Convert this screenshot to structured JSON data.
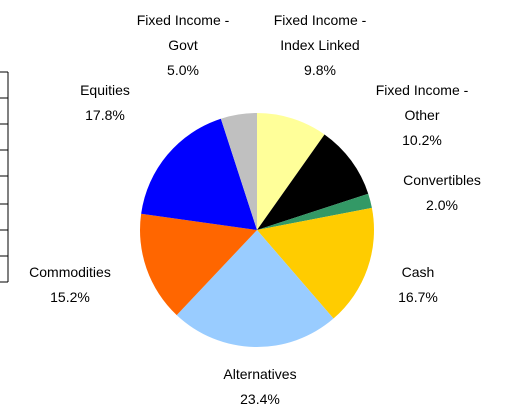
{
  "chart_data": {
    "type": "pie",
    "categories": [
      "Fixed Income - Index Linked",
      "Fixed Income - Other",
      "Convertibles",
      "Cash",
      "Alternatives",
      "Commodities",
      "Equities",
      "Fixed Income - Govt"
    ],
    "values": [
      9.8,
      10.2,
      2.0,
      16.7,
      23.4,
      15.2,
      17.8,
      5.0
    ],
    "value_labels": [
      "9.8%",
      "10.2%",
      "2.0%",
      "16.7%",
      "23.4%",
      "15.2%",
      "17.8%",
      "5.0%"
    ],
    "colors": [
      "#ffff99",
      "#000000",
      "#339966",
      "#ffcc00",
      "#99ccff",
      "#ff6600",
      "#0000ff",
      "#c0c0c0"
    ]
  }
}
